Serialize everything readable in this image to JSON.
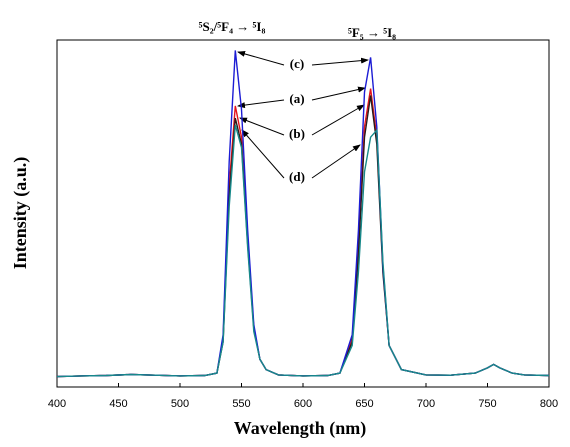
{
  "chart_data": {
    "type": "line",
    "x_label": "Wavelength (nm)",
    "y_label": "Intensity (a.u.)",
    "annotations": [
      "⁵S₂/⁵F₄ → ⁵I₈",
      "⁵F₅ → ⁵I₈"
    ],
    "x": [
      400,
      420,
      440,
      460,
      480,
      500,
      520,
      530,
      535,
      540,
      545,
      550,
      555,
      560,
      565,
      570,
      580,
      600,
      620,
      630,
      640,
      645,
      650,
      655,
      660,
      665,
      670,
      680,
      700,
      720,
      740,
      750,
      755,
      760,
      770,
      780,
      800
    ],
    "series": [
      {
        "name": "(a)",
        "color": "#e3141c",
        "values": [
          3,
          3.2,
          3.3,
          3.6,
          3.4,
          3.2,
          3.3,
          4,
          14,
          58,
          81,
          72,
          42,
          17,
          8,
          5,
          3.5,
          3.2,
          3.3,
          4,
          14,
          40,
          75,
          86,
          72,
          34,
          12,
          5,
          3.5,
          3.4,
          4,
          5.5,
          6.5,
          5.5,
          4,
          3.5,
          3.3
        ]
      },
      {
        "name": "(b)",
        "color": "#2a1a1a",
        "values": [
          3,
          3.2,
          3.3,
          3.6,
          3.4,
          3.2,
          3.3,
          4,
          13,
          55,
          77.5,
          70,
          41,
          17,
          8,
          5,
          3.5,
          3.2,
          3.3,
          4,
          13,
          38,
          72,
          84,
          70,
          33,
          12,
          5,
          3.5,
          3.4,
          4,
          5.5,
          6.5,
          5.5,
          4,
          3.5,
          3.3
        ]
      },
      {
        "name": "(c)",
        "color": "#1c1cd4",
        "values": [
          3,
          3.2,
          3.3,
          3.6,
          3.4,
          3.2,
          3.3,
          4,
          15,
          65,
          97,
          80,
          45,
          18,
          8,
          5,
          3.5,
          3.2,
          3.3,
          4,
          15,
          45,
          85,
          95,
          75,
          35,
          12,
          5,
          3.5,
          3.4,
          4,
          5.5,
          6.5,
          5.5,
          4,
          3.5,
          3.3
        ]
      },
      {
        "name": "(d)",
        "color": "#17898a",
        "values": [
          3,
          3.2,
          3.3,
          3.6,
          3.4,
          3.2,
          3.3,
          4,
          13,
          52,
          75.5,
          69,
          40,
          16,
          8,
          5,
          3.5,
          3.2,
          3.3,
          4,
          12,
          33,
          62,
          72,
          74,
          36,
          12,
          5,
          3.5,
          3.4,
          4,
          5.5,
          6.5,
          5.5,
          4,
          3.5,
          3.3
        ]
      }
    ],
    "xlim": [
      400,
      800
    ],
    "xticks": [
      400,
      450,
      500,
      550,
      600,
      650,
      700,
      750,
      800
    ],
    "ylim": [
      0,
      100
    ],
    "yticks": []
  }
}
